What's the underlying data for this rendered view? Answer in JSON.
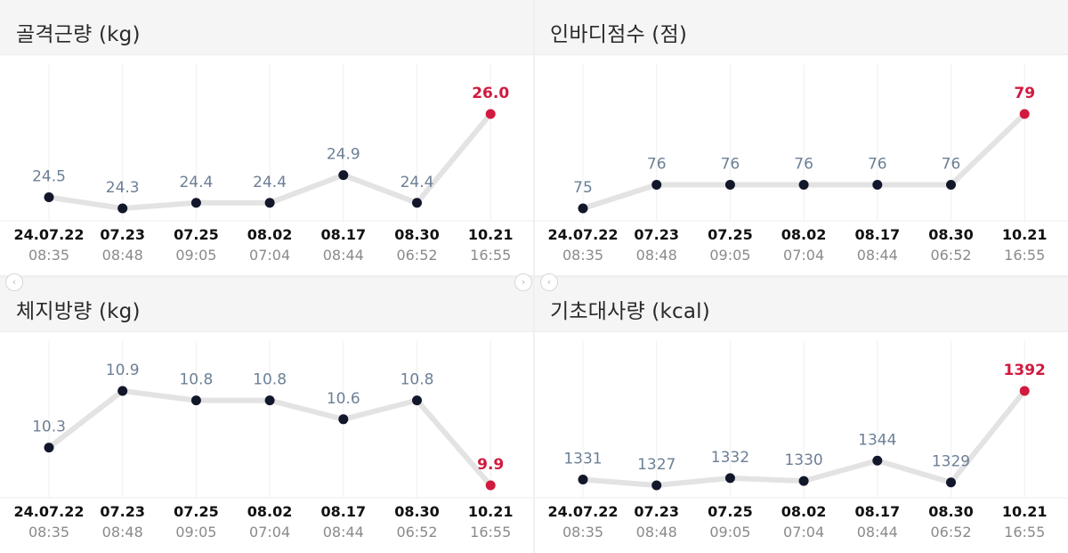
{
  "colors": {
    "accent": "#d11a3f",
    "point": "#12172b",
    "line": "#e3e3e3",
    "value_text": "#6c7f96",
    "date_text": "#111111",
    "time_text": "#8a8a8a",
    "gridline": "#f0f0f0",
    "header_bg": "#f5f5f5"
  },
  "icons": {
    "left": "chevron-left-icon",
    "right": "chevron-right-icon",
    "left_glyph": "‹",
    "right_glyph": "›"
  },
  "chart_data": [
    {
      "type": "line",
      "title": "골격근량 (kg)",
      "x": [
        "24.07.22",
        "07.23",
        "07.25",
        "08.02",
        "08.17",
        "08.30",
        "10.21"
      ],
      "times": [
        "08:35",
        "08:48",
        "09:05",
        "07:04",
        "08:44",
        "06:52",
        "16:55"
      ],
      "values": [
        24.5,
        24.3,
        24.4,
        24.4,
        24.9,
        24.4,
        26.0
      ],
      "labels": [
        "24.5",
        "24.3",
        "24.4",
        "24.4",
        "24.9",
        "24.4",
        "26.0"
      ],
      "highlight_last": true,
      "ylim": [
        24.3,
        26.0
      ],
      "grid": "vertical"
    },
    {
      "type": "line",
      "title": "인바디점수 (점)",
      "x": [
        "24.07.22",
        "07.23",
        "07.25",
        "08.02",
        "08.17",
        "08.30",
        "10.21"
      ],
      "times": [
        "08:35",
        "08:48",
        "09:05",
        "07:04",
        "08:44",
        "06:52",
        "16:55"
      ],
      "values": [
        75,
        76,
        76,
        76,
        76,
        76,
        79
      ],
      "labels": [
        "75",
        "76",
        "76",
        "76",
        "76",
        "76",
        "79"
      ],
      "highlight_last": true,
      "ylim": [
        75,
        79
      ],
      "grid": "vertical"
    },
    {
      "type": "line",
      "title": "체지방량 (kg)",
      "x": [
        "24.07.22",
        "07.23",
        "07.25",
        "08.02",
        "08.17",
        "08.30",
        "10.21"
      ],
      "times": [
        "08:35",
        "08:48",
        "09:05",
        "07:04",
        "08:44",
        "06:52",
        "16:55"
      ],
      "values": [
        10.3,
        10.9,
        10.8,
        10.8,
        10.6,
        10.8,
        9.9
      ],
      "labels": [
        "10.3",
        "10.9",
        "10.8",
        "10.8",
        "10.6",
        "10.8",
        "9.9"
      ],
      "highlight_last": true,
      "ylim": [
        9.9,
        10.9
      ],
      "grid": "vertical"
    },
    {
      "type": "line",
      "title": "기초대사량 (kcal)",
      "x": [
        "24.07.22",
        "07.23",
        "07.25",
        "08.02",
        "08.17",
        "08.30",
        "10.21"
      ],
      "times": [
        "08:35",
        "08:48",
        "09:05",
        "07:04",
        "08:44",
        "06:52",
        "16:55"
      ],
      "values": [
        1331,
        1327,
        1332,
        1330,
        1344,
        1329,
        1392
      ],
      "labels": [
        "1331",
        "1327",
        "1332",
        "1330",
        "1344",
        "1329",
        "1392"
      ],
      "highlight_last": true,
      "ylim": [
        1327,
        1392
      ],
      "grid": "vertical"
    }
  ]
}
